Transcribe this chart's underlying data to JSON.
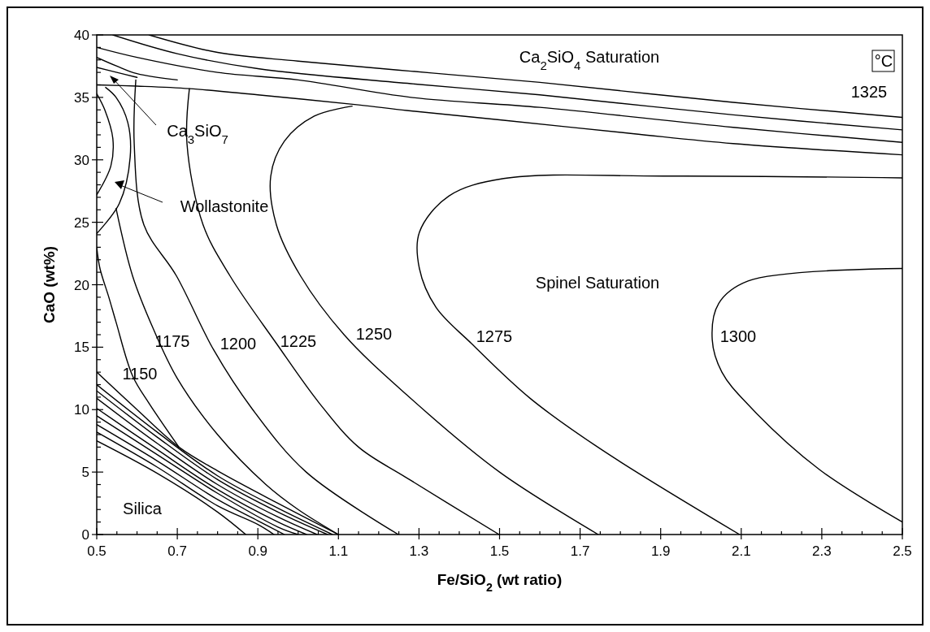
{
  "chart_data": {
    "type": "line",
    "xlabel": "Fe/SiO$_{2}$ (wt ratio)",
    "ylabel": "CaO (wt%)",
    "grid": false,
    "marker": "none",
    "line_style": "solid",
    "xlim": [
      0.5,
      2.5
    ],
    "ylim": [
      0,
      40
    ],
    "xticks": [
      0.5,
      {
        "value": 0.55,
        "label": null
      },
      {
        "value": 0.6,
        "label": null
      },
      {
        "value": 0.65,
        "label": null
      },
      0.7,
      {
        "value": 0.75,
        "label": null
      },
      {
        "value": 0.8,
        "label": null
      },
      {
        "value": 0.85,
        "label": null
      },
      0.9,
      {
        "value": 0.95,
        "label": null
      },
      {
        "value": 1.0,
        "label": null
      },
      {
        "value": 1.05,
        "label": null
      },
      1.1,
      {
        "value": 1.15,
        "label": null
      },
      {
        "value": 1.2,
        "label": null
      },
      {
        "value": 1.25,
        "label": null
      },
      1.3,
      {
        "value": 1.35,
        "label": null
      },
      {
        "value": 1.4,
        "label": null
      },
      {
        "value": 1.45,
        "label": null
      },
      1.5,
      {
        "value": 1.55,
        "label": null
      },
      {
        "value": 1.6,
        "label": null
      },
      {
        "value": 1.65,
        "label": null
      },
      1.7,
      {
        "value": 1.75,
        "label": null
      },
      {
        "value": 1.8,
        "label": null
      },
      {
        "value": 1.85,
        "label": null
      },
      1.9,
      {
        "value": 1.95,
        "label": null
      },
      {
        "value": 2.0,
        "label": null
      },
      {
        "value": 2.05,
        "label": null
      },
      2.1,
      {
        "value": 2.15,
        "label": null
      },
      {
        "value": 2.2,
        "label": null
      },
      {
        "value": 2.25,
        "label": null
      },
      2.3,
      {
        "value": 2.35,
        "label": null
      },
      {
        "value": 2.4,
        "label": null
      },
      {
        "value": 2.45,
        "label": null
      },
      2.5
    ],
    "yticks": [
      0,
      {
        "value": 1,
        "label": null
      },
      {
        "value": 2,
        "label": null
      },
      {
        "value": 3,
        "label": null
      },
      {
        "value": 4,
        "label": null
      },
      5,
      {
        "value": 6,
        "label": null
      },
      {
        "value": 7,
        "label": null
      },
      {
        "value": 8,
        "label": null
      },
      {
        "value": 9,
        "label": null
      },
      10,
      {
        "value": 11,
        "label": null
      },
      {
        "value": 12,
        "label": null
      },
      {
        "value": 13,
        "label": null
      },
      {
        "value": 14,
        "label": null
      },
      15,
      {
        "value": 16,
        "label": null
      },
      {
        "value": 17,
        "label": null
      },
      {
        "value": 18,
        "label": null
      },
      {
        "value": 19,
        "label": null
      },
      20,
      {
        "value": 21,
        "label": null
      },
      {
        "value": 22,
        "label": null
      },
      {
        "value": 23,
        "label": null
      },
      {
        "value": 24,
        "label": null
      },
      25,
      {
        "value": 26,
        "label": null
      },
      {
        "value": 27,
        "label": null
      },
      {
        "value": 28,
        "label": null
      },
      {
        "value": 29,
        "label": null
      },
      30,
      {
        "value": 31,
        "label": null
      },
      {
        "value": 32,
        "label": null
      },
      {
        "value": 33,
        "label": null
      },
      {
        "value": 34,
        "label": null
      },
      35,
      {
        "value": 36,
        "label": null
      },
      {
        "value": 37,
        "label": null
      },
      {
        "value": 38,
        "label": null
      },
      {
        "value": 39,
        "label": null
      },
      40
    ],
    "series": [
      {
        "color": "#000000",
        "x": [
          0.63,
          0.8,
          1.0,
          1.28,
          1.6,
          2.08,
          2.5
        ],
        "values": [
          40,
          38.6,
          37.9,
          37.1,
          36.2,
          34.6,
          33.4
        ]
      },
      {
        "color": "#000000",
        "x": [
          0.54,
          0.7,
          0.9,
          1.28,
          1.6,
          2.08,
          2.5
        ],
        "values": [
          40,
          38.5,
          37.3,
          36.1,
          35.2,
          33.6,
          32.4
        ]
      },
      {
        "color": "#000000",
        "x": [
          0.5,
          0.6,
          0.8,
          1.0,
          1.28,
          1.6,
          2.08,
          2.5
        ],
        "values": [
          39.0,
          38.2,
          37.0,
          36.4,
          35.0,
          34.2,
          32.6,
          31.4
        ]
      },
      {
        "color": "#000000",
        "x": [
          0.5,
          0.55,
          0.6,
          0.7
        ],
        "values": [
          38.2,
          37.5,
          36.9,
          36.4
        ]
      },
      {
        "color": "#000000",
        "x": [
          0.5,
          0.55,
          0.6
        ],
        "values": [
          37.4,
          37.0,
          36.6
        ]
      },
      {
        "color": "#000000",
        "x": [
          0.5,
          0.6,
          0.73,
          0.9,
          1.15,
          1.27,
          1.5,
          1.83,
          2.08,
          2.5
        ],
        "values": [
          36.0,
          35.9,
          35.7,
          35.2,
          34.4,
          33.95,
          33.2,
          32.1,
          31.3,
          30.4
        ]
      },
      {
        "color": "#000000",
        "x": [
          0.522,
          0.548,
          0.577,
          0.583,
          0.556,
          0.5
        ],
        "values": [
          35.8,
          35.0,
          33.0,
          30.2,
          26.5,
          24.1
        ]
      },
      {
        "color": "#000000",
        "x": [
          0.5,
          0.52,
          0.54,
          0.535,
          0.5
        ],
        "values": [
          35.3,
          34.0,
          31.7,
          29.5,
          27.2
        ]
      },
      {
        "color": "#000000",
        "x": [
          0.5,
          0.508,
          0.53,
          0.548,
          0.589,
          0.63,
          0.704
        ],
        "values": [
          23.0,
          21.3,
          19.0,
          17.0,
          12.7,
          10.5,
          7.0
        ]
      },
      {
        "color": "#000000",
        "x": [
          0.548,
          0.589,
          0.64,
          0.7,
          0.8,
          0.92,
          1.0,
          1.1
        ],
        "values": [
          26.1,
          20.7,
          16.5,
          12.5,
          8.0,
          4.0,
          2.0,
          0
        ]
      },
      {
        "color": "#000000",
        "x": [
          0.597,
          0.593,
          0.617,
          0.698,
          0.79,
          0.885,
          1.02,
          1.249
        ],
        "values": [
          36.4,
          31.3,
          24.8,
          20.7,
          14.8,
          10.1,
          5.0,
          0
        ]
      },
      {
        "color": "#000000",
        "x": [
          0.73,
          0.724,
          0.764,
          0.831,
          0.946,
          1.053,
          1.15,
          1.269,
          1.499
        ],
        "values": [
          35.7,
          31.3,
          24.8,
          20.7,
          15.3,
          10.5,
          7.0,
          4.55,
          0
        ]
      },
      {
        "color": "#000000",
        "x": [
          1.134,
          1.04,
          0.966,
          0.932,
          0.946,
          1.006,
          1.114,
          1.269,
          1.5,
          1.745
        ],
        "values": [
          34.3,
          33.5,
          31.5,
          28.7,
          24.8,
          20.7,
          16.0,
          11.2,
          5.0,
          0
        ]
      },
      {
        "color": "#000000",
        "x": [
          2.5,
          1.915,
          1.51,
          1.374,
          1.301,
          1.301,
          1.342,
          1.43,
          1.576,
          1.753,
          2.096
        ],
        "values": [
          28.55,
          28.7,
          28.5,
          27.1,
          24.2,
          21.3,
          18.2,
          15.3,
          10.9,
          6.8,
          0
        ]
      },
      {
        "color": "#000000",
        "x": [
          2.5,
          2.117,
          2.044,
          2.028,
          2.052,
          2.117,
          2.294,
          2.5
        ],
        "values": [
          21.3,
          20.3,
          18.5,
          15.6,
          13.0,
          10.4,
          5.2,
          1.0
        ]
      },
      {
        "color": "#000000",
        "x": [
          0.5,
          0.6,
          0.704,
          0.8,
          0.95,
          1.1
        ],
        "values": [
          13.0,
          10.0,
          7.0,
          5.1,
          2.5,
          0
        ]
      },
      {
        "color": "#000000",
        "x": [
          0.5,
          0.65,
          0.8,
          0.95,
          1.085
        ],
        "values": [
          12.0,
          8.2,
          4.7,
          2.1,
          0
        ]
      },
      {
        "color": "#000000",
        "x": [
          0.5,
          0.65,
          0.8,
          0.95,
          1.073
        ],
        "values": [
          11.5,
          7.8,
          4.4,
          1.8,
          0
        ]
      },
      {
        "color": "#000000",
        "x": [
          0.5,
          0.65,
          0.8,
          0.95,
          1.047
        ],
        "values": [
          10.9,
          7.3,
          4.0,
          1.4,
          0
        ]
      },
      {
        "color": "#000000",
        "x": [
          0.5,
          0.65,
          0.8,
          0.95,
          1.021
        ],
        "values": [
          10.1,
          6.8,
          3.6,
          1.0,
          0
        ]
      },
      {
        "color": "#000000",
        "x": [
          0.5,
          0.65,
          0.8,
          0.95,
          1.0
        ],
        "values": [
          9.5,
          6.4,
          3.3,
          0.6,
          0
        ]
      },
      {
        "color": "#000000",
        "x": [
          0.5,
          0.65,
          0.8,
          0.9,
          0.966
        ],
        "values": [
          8.8,
          5.9,
          2.8,
          1.1,
          0
        ]
      },
      {
        "color": "#000000",
        "x": [
          0.5,
          0.65,
          0.8,
          0.9,
          0.94
        ],
        "values": [
          8.2,
          5.4,
          2.3,
          0.8,
          0
        ]
      },
      {
        "color": "#000000",
        "x": [
          0.5,
          0.65,
          0.8,
          0.87
        ],
        "values": [
          7.5,
          4.9,
          1.8,
          0
        ]
      }
    ],
    "annotations": [
      "Ca$_{2}$SiO$_{4}$ Saturation",
      "°C",
      "1325",
      "Ca$_{3}$SiO$_{7}$",
      "Wollastonite",
      "Spinel Saturation",
      "Silica",
      "1150",
      "1175",
      "1200",
      "1225",
      "1250",
      "1275",
      "1300"
    ]
  }
}
